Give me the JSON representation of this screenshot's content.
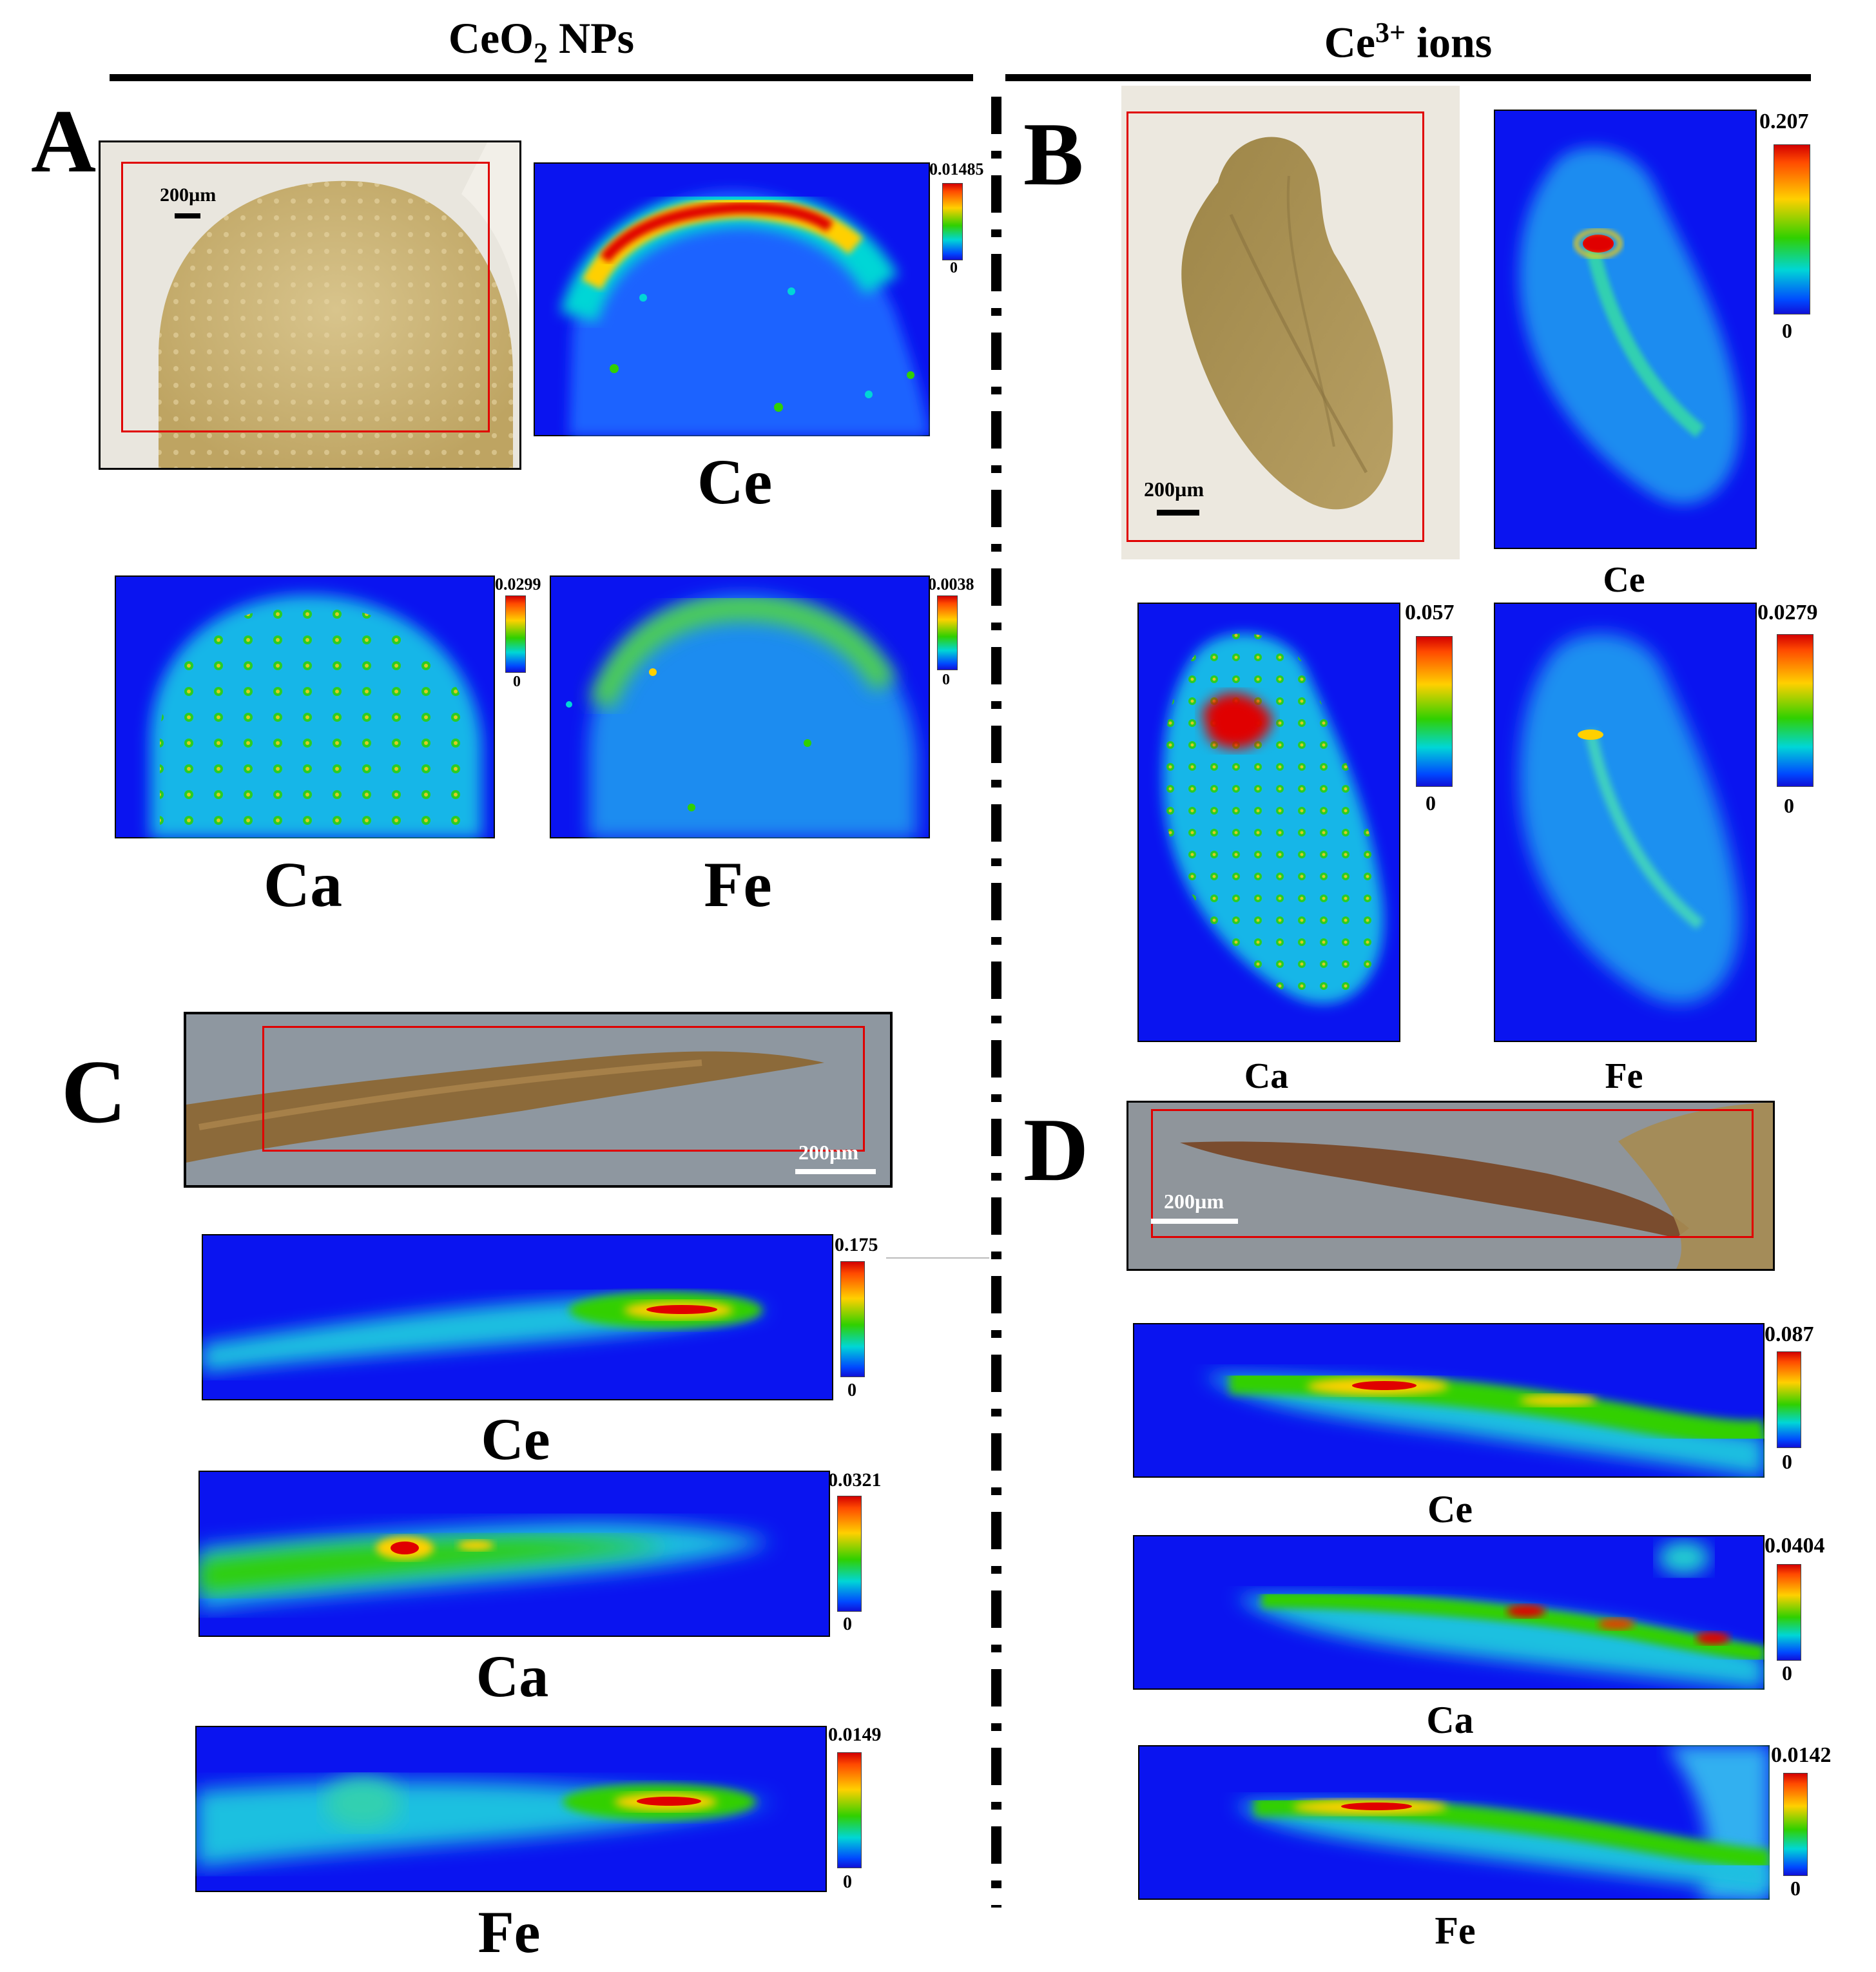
{
  "headers": {
    "left_main": "CeO",
    "left_sub": "2",
    "left_rest": " NPs",
    "right_main": "Ce",
    "right_sup": "3+",
    "right_rest": " ions"
  },
  "panel_letters": [
    "A",
    "B",
    "C",
    "D"
  ],
  "scale_bar_label": "200µm",
  "element_labels": [
    "Ce",
    "Ca",
    "Fe"
  ],
  "colorbars": {
    "A_Ce": {
      "max": "0.01485",
      "min": "0"
    },
    "A_Ca": {
      "max": "0.0299",
      "min": "0"
    },
    "A_Fe": {
      "max": "0.0038",
      "min": "0"
    },
    "B_Ce": {
      "max": "0.207",
      "min": "0"
    },
    "B_Ca": {
      "max": "0.057",
      "min": "0"
    },
    "B_Fe": {
      "max": "0.0279",
      "min": "0"
    },
    "C_Ce": {
      "max": "0.175",
      "min": "0"
    },
    "C_Ca": {
      "max": "0.0321",
      "min": "0"
    },
    "C_Fe": {
      "max": "0.0149",
      "min": "0"
    },
    "D_Ce": {
      "max": "0.087",
      "min": "0"
    },
    "D_Ca": {
      "max": "0.0404",
      "min": "0"
    },
    "D_Fe": {
      "max": "0.0142",
      "min": "0"
    }
  },
  "colors": {
    "map_background": "#0a14f0",
    "annotation_box": "#e00000",
    "colormap": [
      "#1010d8",
      "#0048ff",
      "#00d6d6",
      "#30d000",
      "#ffd000",
      "#ff4a00",
      "#d30000"
    ]
  }
}
